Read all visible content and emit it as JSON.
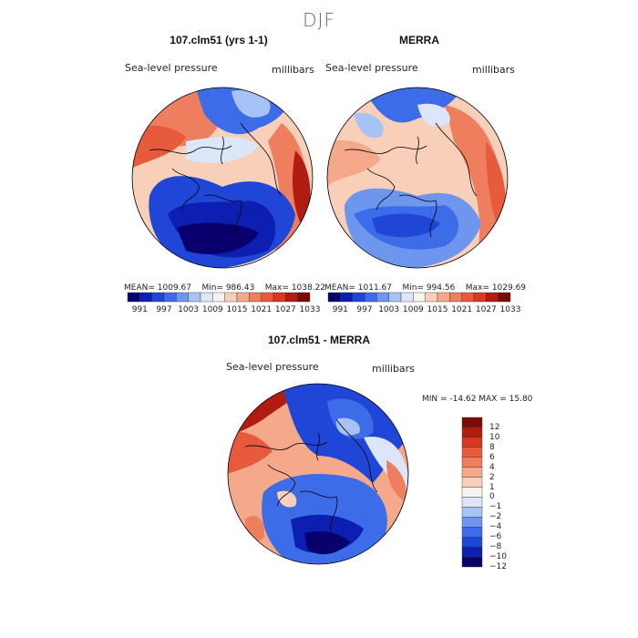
{
  "season": "DJF",
  "colors": {
    "scale": [
      "#08006d",
      "#0c1fb0",
      "#1f46d6",
      "#3c6ce8",
      "#6f96ef",
      "#a7c2f5",
      "#dce6f8",
      "#f7f3ef",
      "#f8cfb8",
      "#f4a98a",
      "#ef7e5f",
      "#e85a3c",
      "#d8381f",
      "#b01d10",
      "#7b0b06"
    ],
    "coast": "#000000"
  },
  "chart_data": [
    {
      "type": "polar-contour-map",
      "title": "107.clm51 (yrs 1-1)",
      "variable": "Sea-level pressure",
      "units": "millibars",
      "stats": {
        "mean_label": "MEAN=",
        "mean": "1009.67",
        "min_label": "Min=",
        "min": "986.43",
        "max_label": "Max=",
        "max": "1038.22"
      },
      "colorbar_ticks": [
        "991",
        "997",
        "1003",
        "1009",
        "1015",
        "1021",
        "1027",
        "1033"
      ]
    },
    {
      "type": "polar-contour-map",
      "title": "MERRA",
      "variable": "Sea-level pressure",
      "units": "millibars",
      "stats": {
        "mean_label": "MEAN=",
        "mean": "1011.67",
        "min_label": "Min=",
        "min": "994.56",
        "max_label": "Max=",
        "max": "1029.69"
      },
      "colorbar_ticks": [
        "991",
        "997",
        "1003",
        "1009",
        "1015",
        "1021",
        "1027",
        "1033"
      ]
    },
    {
      "type": "polar-contour-map",
      "title": "107.clm51 - MERRA",
      "variable": "Sea-level pressure",
      "units": "millibars",
      "range_text": "MIN = -14.62 MAX =  15.80",
      "colorbar_ticks": [
        "12",
        "10",
        "8",
        "6",
        "4",
        "2",
        "1",
        "0",
        "−1",
        "−2",
        "−4",
        "−6",
        "−8",
        "−10",
        "−12"
      ]
    }
  ]
}
